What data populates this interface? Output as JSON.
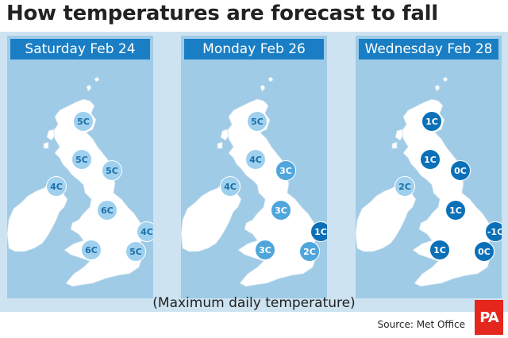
{
  "title": "How temperatures are forecast to fall",
  "caption": "(Maximum daily temperature)",
  "source": "Source: Met Office",
  "logo_text": "PA",
  "colors": {
    "background_band": "#cde3f1",
    "sea": "#9fcbe6",
    "land": "#ffffff",
    "header": "#1a7ec4",
    "bubble_light_fill": "#9fd0ee",
    "bubble_light_text": "#1a6fa8",
    "bubble_mid_fill": "#4fa6dc",
    "bubble_dark_fill": "#0b70b8",
    "logo": "#e4261c"
  },
  "panels": [
    {
      "date": "Saturday Feb 24",
      "temperatures": [
        {
          "place": "Scottish Highlands",
          "label": "5C",
          "value": 5,
          "shade": "light"
        },
        {
          "place": "Southern Scotland",
          "label": "5C",
          "value": 5,
          "shade": "light"
        },
        {
          "place": "North-east England",
          "label": "5C",
          "value": 5,
          "shade": "light"
        },
        {
          "place": "Northern Ireland",
          "label": "4C",
          "value": 4,
          "shade": "light"
        },
        {
          "place": "Midlands",
          "label": "6C",
          "value": 6,
          "shade": "light"
        },
        {
          "place": "East Anglia",
          "label": "4C",
          "value": 4,
          "shade": "light"
        },
        {
          "place": "Wales",
          "label": "6C",
          "value": 6,
          "shade": "light"
        },
        {
          "place": "South-east England",
          "label": "5C",
          "value": 5,
          "shade": "light"
        }
      ]
    },
    {
      "date": "Monday Feb 26",
      "temperatures": [
        {
          "place": "Scottish Highlands",
          "label": "5C",
          "value": 5,
          "shade": "light"
        },
        {
          "place": "Southern Scotland",
          "label": "4C",
          "value": 4,
          "shade": "light"
        },
        {
          "place": "North-east England",
          "label": "3C",
          "value": 3,
          "shade": "mid"
        },
        {
          "place": "Northern Ireland",
          "label": "4C",
          "value": 4,
          "shade": "light"
        },
        {
          "place": "Midlands",
          "label": "3C",
          "value": 3,
          "shade": "mid"
        },
        {
          "place": "East Anglia",
          "label": "1C",
          "value": 1,
          "shade": "dark"
        },
        {
          "place": "Wales",
          "label": "3C",
          "value": 3,
          "shade": "mid"
        },
        {
          "place": "South-east England",
          "label": "2C",
          "value": 2,
          "shade": "mid"
        }
      ]
    },
    {
      "date": "Wednesday Feb 28",
      "temperatures": [
        {
          "place": "Scottish Highlands",
          "label": "1C",
          "value": 1,
          "shade": "dark"
        },
        {
          "place": "Southern Scotland",
          "label": "1C",
          "value": 1,
          "shade": "dark"
        },
        {
          "place": "North-east England",
          "label": "0C",
          "value": 0,
          "shade": "dark"
        },
        {
          "place": "Northern Ireland",
          "label": "2C",
          "value": 2,
          "shade": "light"
        },
        {
          "place": "Midlands",
          "label": "1C",
          "value": 1,
          "shade": "dark"
        },
        {
          "place": "East Anglia",
          "label": "-1C",
          "value": -1,
          "shade": "dark"
        },
        {
          "place": "Wales",
          "label": "1C",
          "value": 1,
          "shade": "dark"
        },
        {
          "place": "South-east England",
          "label": "0C",
          "value": 0,
          "shade": "dark"
        }
      ]
    }
  ]
}
